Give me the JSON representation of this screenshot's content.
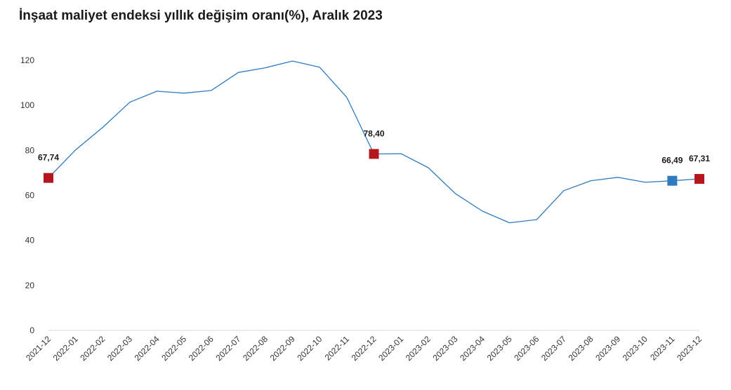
{
  "title": "İnşaat maliyet endeksi yıllık değişim oranı(%), Aralık 2023",
  "chart_data": {
    "type": "line",
    "title": "İnşaat maliyet endeksi yıllık değişim oranı(%), Aralık 2023",
    "xlabel": "",
    "ylabel": "",
    "ylim": [
      0,
      120
    ],
    "yticks": [
      0,
      20,
      40,
      60,
      80,
      100,
      120
    ],
    "grid": false,
    "categories": [
      "2021-12",
      "2022-01",
      "2022-02",
      "2022-03",
      "2022-04",
      "2022-05",
      "2022-06",
      "2022-07",
      "2022-08",
      "2022-09",
      "2022-10",
      "2022-11",
      "2022-12",
      "2023-01",
      "2023-02",
      "2023-03",
      "2023-04",
      "2023-05",
      "2023-06",
      "2023-07",
      "2023-08",
      "2023-09",
      "2023-10",
      "2023-11",
      "2023-12"
    ],
    "series": [
      {
        "values": [
          67.74,
          80.2,
          90.2,
          101.4,
          106.3,
          105.4,
          106.6,
          114.6,
          116.7,
          119.7,
          116.9,
          103.5,
          78.4,
          78.5,
          72.3,
          60.8,
          53.0,
          47.8,
          49.2,
          62.1,
          66.5,
          68.0,
          65.8,
          66.49,
          67.31
        ],
        "color": "#2e7bbf"
      }
    ],
    "highlights": [
      {
        "x": "2021-12",
        "value": 67.74,
        "label": "67,74",
        "color": "#b5161e"
      },
      {
        "x": "2022-12",
        "value": 78.4,
        "label": "78,40",
        "color": "#b5161e"
      },
      {
        "x": "2023-11",
        "value": 66.49,
        "label": "66,49",
        "color": "#2e7bbf"
      },
      {
        "x": "2023-12",
        "value": 67.31,
        "label": "67,31",
        "color": "#b5161e"
      }
    ]
  }
}
